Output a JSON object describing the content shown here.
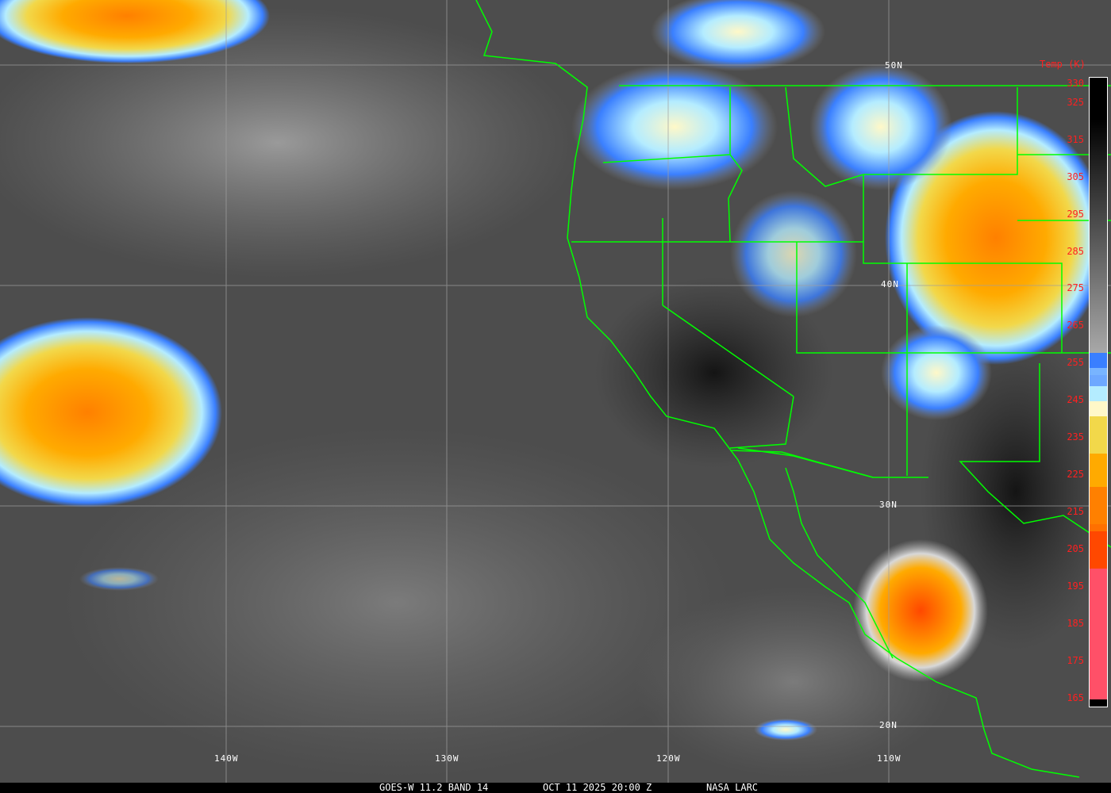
{
  "image": {
    "satellite": "GOES-W",
    "footer": {
      "band": "GOES-W 11.2 BAND 14",
      "datetime": "OCT 11 2025 20:00 Z",
      "credit": "NASA LARC"
    },
    "grid": {
      "latitudes": [
        "50N",
        "40N",
        "30N",
        "20N"
      ],
      "longitudes": [
        "140W",
        "130W",
        "120W",
        "110W"
      ]
    },
    "colorbar": {
      "title": "Temp (K)",
      "ticks": [
        "330",
        "325",
        "315",
        "305",
        "295",
        "285",
        "275",
        "265",
        "255",
        "245",
        "235",
        "225",
        "215",
        "205",
        "195",
        "185",
        "175",
        "165"
      ],
      "tick_values": [
        330,
        325,
        315,
        305,
        295,
        285,
        275,
        265,
        255,
        245,
        235,
        225,
        215,
        205,
        195,
        185,
        175,
        165
      ],
      "range": [
        163,
        332
      ],
      "stops": [
        {
          "from": 332,
          "to": 258,
          "color": "gradient-black-to-gray"
        },
        {
          "from": 258,
          "to": 254,
          "color": "#3a7fff"
        },
        {
          "from": 254,
          "to": 252,
          "color": "#78b4ff"
        },
        {
          "from": 252,
          "to": 249,
          "color": "#6ea8ff"
        },
        {
          "from": 249,
          "to": 245,
          "color": "#b4ecff"
        },
        {
          "from": 245,
          "to": 241,
          "color": "#fff8c8"
        },
        {
          "from": 241,
          "to": 231,
          "color": "#f2d84a"
        },
        {
          "from": 231,
          "to": 222,
          "color": "#ffaa00"
        },
        {
          "from": 222,
          "to": 212,
          "color": "#ff8000"
        },
        {
          "from": 212,
          "to": 210,
          "color": "#ff7000"
        },
        {
          "from": 210,
          "to": 200,
          "color": "#ff4800"
        },
        {
          "from": 200,
          "to": 165,
          "color": "#ff5068"
        }
      ]
    },
    "colors": {
      "borders": "#00ff00",
      "labels": "#ff2020",
      "grid": "#a0a0a0"
    }
  }
}
